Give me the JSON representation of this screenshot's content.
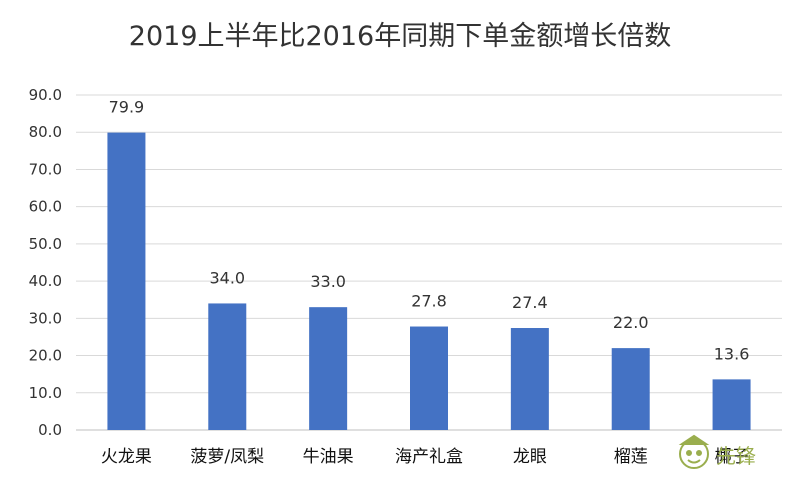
{
  "chart_data": {
    "type": "bar",
    "title": "2019上半年比2016年同期下单金额增长倍数",
    "categories": [
      "火龙果",
      "菠萝/凤梨",
      "牛油果",
      "海产礼盒",
      "龙眼",
      "榴莲",
      "椰子"
    ],
    "values": [
      79.9,
      34.0,
      33.0,
      27.8,
      27.4,
      22.0,
      13.6
    ],
    "data_labels": [
      "79.9",
      "34.0",
      "33.0",
      "27.8",
      "27.4",
      "22.0",
      "13.6"
    ],
    "ylim": [
      0,
      90
    ],
    "yticks": [
      "0.0",
      "10.0",
      "20.0",
      "30.0",
      "40.0",
      "50.0",
      "60.0",
      "70.0",
      "80.0",
      "90.0"
    ],
    "grid": true,
    "legend": "none",
    "bar_color": "#4472c4",
    "xlabel": "",
    "ylabel": ""
  },
  "watermark": {
    "icon": "mascot-logo-icon",
    "text": "先锋",
    "color": "#9aae4e"
  }
}
